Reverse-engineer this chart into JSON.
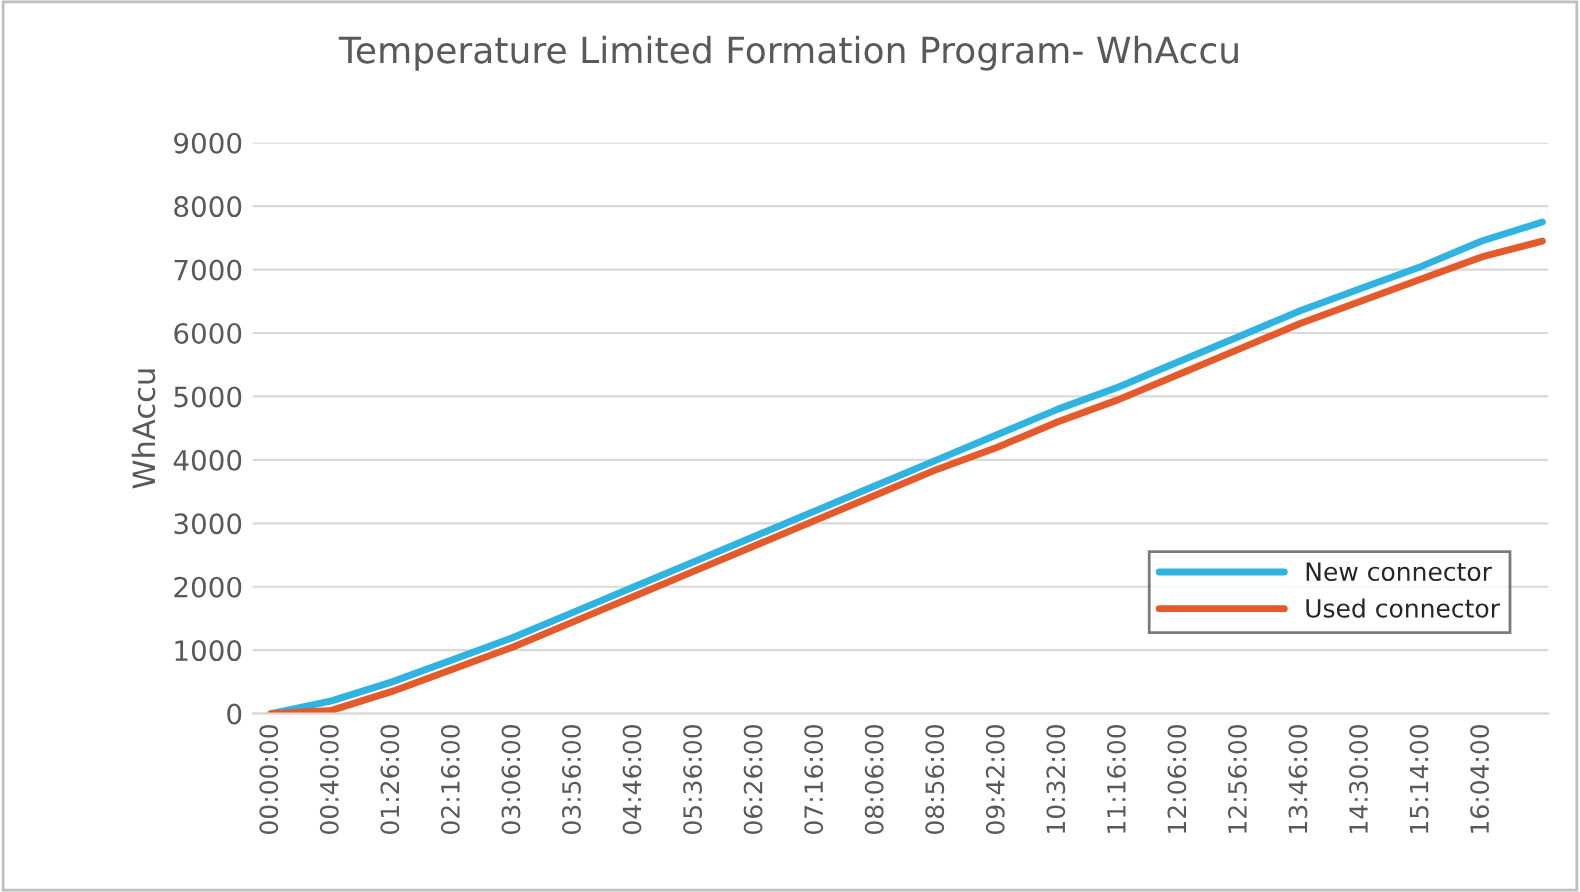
{
  "chart_data": {
    "type": "line",
    "title": "Temperature Limited Formation Program- WhAccu",
    "ylabel": "WhAccu",
    "categories": [
      "00:00:00",
      "00:40:00",
      "01:26:00",
      "02:16:00",
      "03:06:00",
      "03:56:00",
      "04:46:00",
      "05:36:00",
      "06:26:00",
      "07:16:00",
      "08:06:00",
      "08:56:00",
      "09:42:00",
      "10:32:00",
      "11:16:00",
      "12:06:00",
      "12:56:00",
      "13:46:00",
      "14:30:00",
      "15:14:00",
      "16:04:00",
      null
    ],
    "series": [
      {
        "name": "New connector",
        "color": "#2fb3e0",
        "values": [
          0,
          200,
          500,
          850,
          1200,
          1600,
          2000,
          2400,
          2800,
          3200,
          3600,
          4000,
          4400,
          4800,
          5150,
          5550,
          5950,
          6350,
          6700,
          7050,
          7450,
          7750
        ]
      },
      {
        "name": "Used connector",
        "color": "#e55a2b",
        "values": [
          0,
          50,
          350,
          700,
          1050,
          1450,
          1850,
          2250,
          2650,
          3050,
          3450,
          3850,
          4200,
          4600,
          4950,
          5350,
          5750,
          6150,
          6500,
          6850,
          7200,
          7450
        ]
      }
    ],
    "ylim": [
      0,
      9000
    ],
    "yticks": [
      0,
      1000,
      2000,
      3000,
      4000,
      5000,
      6000,
      7000,
      8000,
      9000
    ],
    "grid": "y",
    "legend": "bottom right",
    "marker": "none",
    "line_style": "solid"
  }
}
